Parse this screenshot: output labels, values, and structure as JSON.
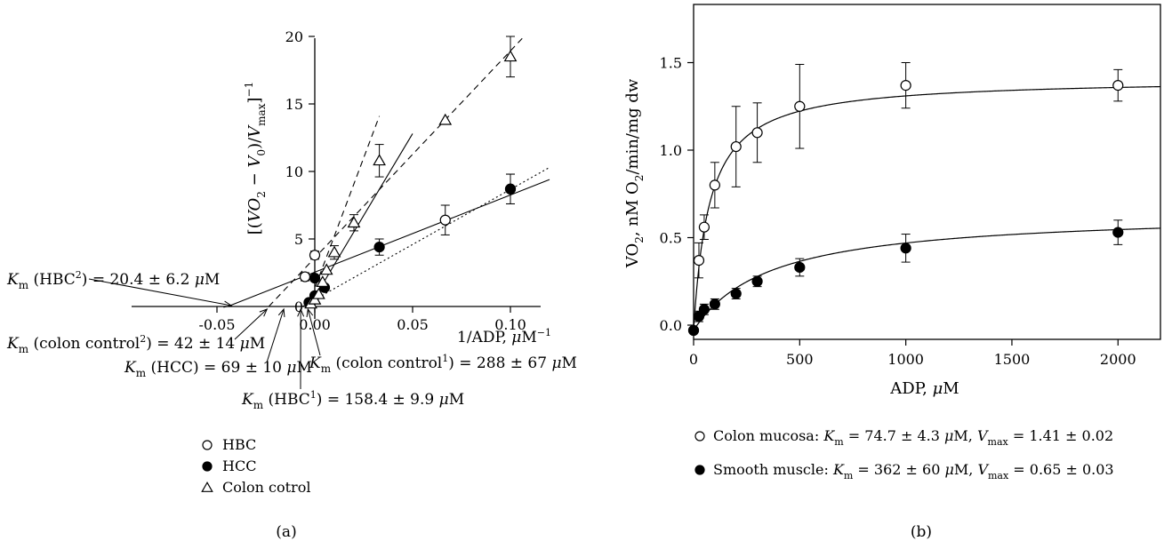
{
  "chart_data": [
    {
      "panel_label": "(a)",
      "type": "scatter",
      "xlabel": "1/ADP, μM⁻¹",
      "ylabel": "[(VO₂ − V₀)/Vmax]⁻¹",
      "xlim": [
        -0.07,
        0.12
      ],
      "ylim": [
        -2,
        20
      ],
      "x_ticks": [
        -0.05,
        0.0,
        0.05,
        0.1
      ],
      "x_tick_labels": [
        "-0.05",
        "0.00",
        "0.05",
        "0.10"
      ],
      "y_ticks": [
        0,
        5,
        10,
        15,
        20
      ],
      "y_tick_labels": [
        "0",
        "5",
        "10",
        "15",
        "20"
      ],
      "grid": false,
      "legend_placement": "below",
      "series": [
        {
          "name": "HBC",
          "marker": "open-circle",
          "points": [
            {
              "x": 0.0,
              "y": 3.8,
              "err": 0.3
            },
            {
              "x": 0.0667,
              "y": 6.4,
              "err": 1.1
            },
            {
              "x": 0.1,
              "y": 8.7,
              "err": 1.1
            },
            {
              "x": -0.005,
              "y": 2.2,
              "err": 0.3
            }
          ]
        },
        {
          "name": "HCC",
          "marker": "filled-circle",
          "points": [
            {
              "x": -0.003,
              "y": 0.3,
              "err": 0
            },
            {
              "x": 0.0,
              "y": 0.8,
              "err": 0
            },
            {
              "x": 0.005,
              "y": 1.4,
              "err": 0.2
            },
            {
              "x": 0.0,
              "y": 2.1,
              "err": 0.2
            },
            {
              "x": 0.033,
              "y": 4.4,
              "err": 0.6
            },
            {
              "x": 0.1,
              "y": 8.7,
              "err": 1.1
            }
          ]
        },
        {
          "name": "Colon cotrol",
          "marker": "open-triangle",
          "points": [
            {
              "x": -0.002,
              "y": 0.2,
              "err": 0
            },
            {
              "x": 0.0,
              "y": 0.5,
              "err": 0
            },
            {
              "x": 0.002,
              "y": 0.9,
              "err": 0
            },
            {
              "x": 0.004,
              "y": 1.8,
              "err": 0
            },
            {
              "x": 0.006,
              "y": 2.7,
              "err": 0
            },
            {
              "x": 0.01,
              "y": 4.0,
              "err": 0.5
            },
            {
              "x": 0.02,
              "y": 6.2,
              "err": 0.6
            },
            {
              "x": 0.033,
              "y": 10.8,
              "err": 1.2
            },
            {
              "x": 0.0667,
              "y": 13.8,
              "err": 0
            },
            {
              "x": 0.1,
              "y": 18.5,
              "err": 1.5
            }
          ]
        }
      ],
      "fit_lines": [
        {
          "style": "solid",
          "x": [
            -0.0445,
            0.12
          ],
          "y": [
            0,
            9.4
          ]
        },
        {
          "style": "solid",
          "x": [
            -0.0028,
            0.05
          ],
          "y": [
            0,
            12.8
          ]
        },
        {
          "style": "dotted",
          "x": [
            -0.0063,
            0.12
          ],
          "y": [
            0,
            10.3
          ]
        },
        {
          "style": "dashed",
          "x": [
            -0.0235,
            0.107
          ],
          "y": [
            0,
            20
          ]
        },
        {
          "style": "dashed",
          "x": [
            -0.0035,
            0.033
          ],
          "y": [
            0,
            14.1
          ]
        }
      ],
      "annotations": [
        {
          "prefix": "K",
          "sub": "m",
          "mid": " (HBC",
          "sup": "2",
          "post": ") = 20.4 ± 6.2 ",
          "unit": "μM",
          "x": -0.0445
        },
        {
          "prefix": "K",
          "sub": "m",
          "mid": " (colon control",
          "sup": "2",
          "post": ") = 42 ± 14 ",
          "unit": "μM",
          "x": -0.0235
        },
        {
          "prefix": "K",
          "sub": "m",
          "mid": " (HCC) = 69 ± 10 ",
          "sup": "",
          "post": "",
          "unit": "μM",
          "x": -0.0145
        },
        {
          "prefix": "K",
          "sub": "m",
          "mid": " (colon control",
          "sup": "1",
          "post": ") = 288 ± 67 ",
          "unit": "μM",
          "x": -0.0035
        },
        {
          "prefix": "K",
          "sub": "m",
          "mid": " (HBC",
          "sup": "1",
          "post": ") = 158.4 ± 9.9 ",
          "unit": "μM",
          "x": -0.0063
        }
      ]
    },
    {
      "panel_label": "(b)",
      "type": "scatter",
      "xlabel": "ADP, μM",
      "ylabel": "VO₂, nM O₂/min/mg dw",
      "xlim": [
        0,
        2200
      ],
      "ylim": [
        -0.05,
        1.8
      ],
      "x_ticks": [
        0,
        500,
        1000,
        1500,
        2000
      ],
      "x_tick_labels": [
        "0",
        "500",
        "1000",
        "1500",
        "2000"
      ],
      "y_ticks": [
        0.0,
        0.5,
        1.0,
        1.5
      ],
      "y_tick_labels": [
        "0.0",
        "0.5",
        "1.0",
        "1.5"
      ],
      "grid": false,
      "legend_placement": "below",
      "series": [
        {
          "name": "Colon mucosa",
          "marker": "open-circle",
          "points": [
            {
              "x": 0,
              "y": -0.03,
              "err": 0
            },
            {
              "x": 25,
              "y": 0.37,
              "err": 0.1
            },
            {
              "x": 50,
              "y": 0.56,
              "err": 0.07
            },
            {
              "x": 100,
              "y": 0.8,
              "err": 0.13
            },
            {
              "x": 200,
              "y": 1.02,
              "err": 0.23
            },
            {
              "x": 300,
              "y": 1.1,
              "err": 0.17
            },
            {
              "x": 500,
              "y": 1.25,
              "err": 0.24
            },
            {
              "x": 1000,
              "y": 1.37,
              "err": 0.13
            },
            {
              "x": 2000,
              "y": 1.37,
              "err": 0.09
            }
          ],
          "fit": {
            "km": 74.7,
            "vmax": 1.41
          }
        },
        {
          "name": "Smooth muscle",
          "marker": "filled-circle",
          "points": [
            {
              "x": 0,
              "y": -0.03,
              "err": 0
            },
            {
              "x": 25,
              "y": 0.05,
              "err": 0.03
            },
            {
              "x": 50,
              "y": 0.09,
              "err": 0.03
            },
            {
              "x": 100,
              "y": 0.12,
              "err": 0.03
            },
            {
              "x": 200,
              "y": 0.18,
              "err": 0.03
            },
            {
              "x": 300,
              "y": 0.25,
              "err": 0.03
            },
            {
              "x": 500,
              "y": 0.33,
              "err": 0.05
            },
            {
              "x": 1000,
              "y": 0.44,
              "err": 0.08
            },
            {
              "x": 2000,
              "y": 0.53,
              "err": 0.07
            }
          ],
          "fit": {
            "km": 362,
            "vmax": 0.65
          }
        }
      ]
    }
  ],
  "legend_a": [
    {
      "marker": "open-circle",
      "label": "HBC"
    },
    {
      "marker": "filled-circle",
      "label": "HCC"
    },
    {
      "marker": "open-triangle",
      "label": "Colon cotrol"
    }
  ],
  "legend_b": [
    {
      "marker": "open-circle",
      "label": "Colon mucosa: ",
      "km": "74.7 ± 4.3 ",
      "km_unit": "μM",
      "vmax": "1.41 ± 0.02"
    },
    {
      "marker": "filled-circle",
      "label": "Smooth muscle: ",
      "km": "362 ± 60 ",
      "km_unit": "μM",
      "vmax": "0.65 ± 0.03"
    }
  ]
}
